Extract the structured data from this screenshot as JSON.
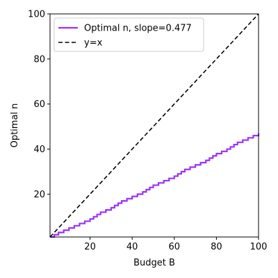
{
  "chart_data": {
    "type": "line",
    "title": "",
    "xlabel": "Budget B",
    "ylabel": "Optimal n",
    "xlim": [
      1,
      100
    ],
    "ylim": [
      1,
      100
    ],
    "xticks": [
      20,
      40,
      60,
      80,
      100
    ],
    "yticks": [
      20,
      40,
      60,
      80,
      100
    ],
    "grid": false,
    "legend_position": "upper-left",
    "series": [
      {
        "name": "Optimal n, slope=0.477",
        "color": "#9b30ff",
        "style": "solid-step",
        "x": [
          1,
          5,
          10,
          15,
          20,
          25,
          30,
          35,
          40,
          45,
          50,
          55,
          60,
          65,
          70,
          75,
          80,
          85,
          90,
          95,
          100
        ],
        "values": [
          1,
          3,
          5,
          7,
          9,
          12,
          14,
          17,
          19,
          21,
          24,
          26,
          28,
          31,
          33,
          35,
          38,
          40,
          43,
          45,
          47
        ]
      },
      {
        "name": "y=x",
        "color": "#000000",
        "style": "dashed",
        "x": [
          1,
          100
        ],
        "values": [
          1,
          100
        ]
      }
    ]
  }
}
